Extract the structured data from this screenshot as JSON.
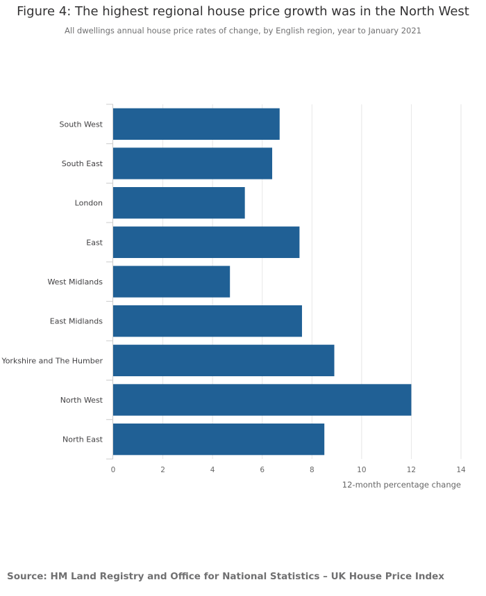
{
  "title": "Figure 4: The highest regional house price growth was in the North West",
  "subtitle": "All dwellings annual house price rates of change, by English region, year to January 2021",
  "source": "Source: HM Land Registry and Office for National Statistics – UK House Price Index",
  "chart_data": {
    "type": "bar",
    "orientation": "horizontal",
    "categories": [
      "South West",
      "South East",
      "London",
      "East",
      "West Midlands",
      "East Midlands",
      "Yorkshire and The Humber",
      "North West",
      "North East"
    ],
    "values": [
      6.7,
      6.4,
      5.3,
      7.5,
      4.7,
      7.6,
      8.9,
      12.0,
      8.5
    ],
    "xlabel": "12-month percentage change",
    "xlim": [
      0,
      14
    ],
    "xticks": [
      0,
      2,
      4,
      6,
      8,
      10,
      12,
      14
    ],
    "bar_color": "#206095",
    "grid": true
  }
}
